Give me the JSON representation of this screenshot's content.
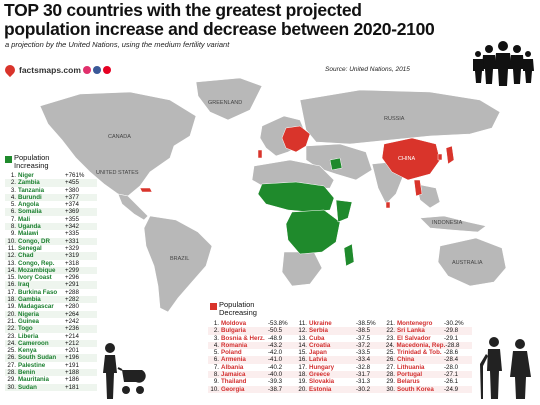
{
  "title": "TOP 30 countries with the greatest projected population increase and decrease between 2020-2100",
  "subtitle": "a projection by the United Nations, using the medium fertility variant",
  "source": "Source: United Nations, 2015",
  "brand": {
    "name": "factsmaps.com"
  },
  "colors": {
    "increase": "#1f8a2c",
    "decrease": "#d9342b",
    "neutral_land": "#b8b8b8",
    "ocean": "#ffffff"
  },
  "map_labels": [
    "GREENLAND",
    "CANADA",
    "UNITED STATES",
    "BRAZIL",
    "RUSSIA",
    "CHINA",
    "AUSTRALIA",
    "INDONESIA"
  ],
  "legend": {
    "increasing": "Population Increasing",
    "decreasing": "Population Decreasing"
  },
  "increasing": [
    {
      "rank": "1.",
      "name": "Niger",
      "value": "+761%"
    },
    {
      "rank": "2.",
      "name": "Zambia",
      "value": "+455"
    },
    {
      "rank": "3.",
      "name": "Tanzania",
      "value": "+380"
    },
    {
      "rank": "4.",
      "name": "Burundi",
      "value": "+377"
    },
    {
      "rank": "5.",
      "name": "Angola",
      "value": "+374"
    },
    {
      "rank": "6.",
      "name": "Somalia",
      "value": "+369"
    },
    {
      "rank": "7.",
      "name": "Mali",
      "value": "+355"
    },
    {
      "rank": "8.",
      "name": "Uganda",
      "value": "+342"
    },
    {
      "rank": "9.",
      "name": "Malawi",
      "value": "+335"
    },
    {
      "rank": "10.",
      "name": "Congo, DR",
      "value": "+331"
    },
    {
      "rank": "11.",
      "name": "Senegal",
      "value": "+329"
    },
    {
      "rank": "12.",
      "name": "Chad",
      "value": "+319"
    },
    {
      "rank": "13.",
      "name": "Congo, Rep.",
      "value": "+318"
    },
    {
      "rank": "14.",
      "name": "Mozambique",
      "value": "+299"
    },
    {
      "rank": "15.",
      "name": "Ivory Coast",
      "value": "+296"
    },
    {
      "rank": "16.",
      "name": "Iraq",
      "value": "+291"
    },
    {
      "rank": "17.",
      "name": "Burkina Faso",
      "value": "+288"
    },
    {
      "rank": "18.",
      "name": "Gambia",
      "value": "+282"
    },
    {
      "rank": "19.",
      "name": "Madagascar",
      "value": "+280"
    },
    {
      "rank": "20.",
      "name": "Nigeria",
      "value": "+264"
    },
    {
      "rank": "21.",
      "name": "Guinea",
      "value": "+242"
    },
    {
      "rank": "22.",
      "name": "Togo",
      "value": "+236"
    },
    {
      "rank": "23.",
      "name": "Liberia",
      "value": "+214"
    },
    {
      "rank": "24.",
      "name": "Cameroon",
      "value": "+212"
    },
    {
      "rank": "25.",
      "name": "Kenya",
      "value": "+201"
    },
    {
      "rank": "26.",
      "name": "South Sudan",
      "value": "+196"
    },
    {
      "rank": "27.",
      "name": "Palestine",
      "value": "+191"
    },
    {
      "rank": "28.",
      "name": "Benin",
      "value": "+188"
    },
    {
      "rank": "29.",
      "name": "Mauritania",
      "value": "+186"
    },
    {
      "rank": "30.",
      "name": "Sudan",
      "value": "+181"
    }
  ],
  "decreasing": [
    {
      "rank": "1.",
      "name": "Moldova",
      "value": "-53.8%"
    },
    {
      "rank": "2.",
      "name": "Bulgaria",
      "value": "-50.5"
    },
    {
      "rank": "3.",
      "name": "Bosnia & Herz.",
      "value": "-48.9"
    },
    {
      "rank": "4.",
      "name": "Romania",
      "value": "-43.2"
    },
    {
      "rank": "5.",
      "name": "Poland",
      "value": "-42.0"
    },
    {
      "rank": "6.",
      "name": "Armenia",
      "value": "-41.0"
    },
    {
      "rank": "7.",
      "name": "Albania",
      "value": "-40.2"
    },
    {
      "rank": "8.",
      "name": "Jamaica",
      "value": "-40.0"
    },
    {
      "rank": "9.",
      "name": "Thailand",
      "value": "-39.3"
    },
    {
      "rank": "10.",
      "name": "Georgia",
      "value": "-38.7"
    },
    {
      "rank": "11.",
      "name": "Ukraine",
      "value": "-38.5%"
    },
    {
      "rank": "12.",
      "name": "Serbia",
      "value": "-38.5"
    },
    {
      "rank": "13.",
      "name": "Cuba",
      "value": "-37.5"
    },
    {
      "rank": "14.",
      "name": "Croatia",
      "value": "-37.2"
    },
    {
      "rank": "15.",
      "name": "Japan",
      "value": "-33.5"
    },
    {
      "rank": "16.",
      "name": "Latvia",
      "value": "-33.4"
    },
    {
      "rank": "17.",
      "name": "Hungary",
      "value": "-32.8"
    },
    {
      "rank": "18.",
      "name": "Greece",
      "value": "-31.7"
    },
    {
      "rank": "19.",
      "name": "Slovakia",
      "value": "-31.3"
    },
    {
      "rank": "20.",
      "name": "Estonia",
      "value": "-30.2"
    },
    {
      "rank": "21.",
      "name": "Montenegro",
      "value": "-30.2%"
    },
    {
      "rank": "22.",
      "name": "Sri Lanka",
      "value": "-29.8"
    },
    {
      "rank": "23.",
      "name": "El Salvador",
      "value": "-29.1"
    },
    {
      "rank": "24.",
      "name": "Macedonia, Rep.",
      "value": "-28.8"
    },
    {
      "rank": "25.",
      "name": "Trinidad & Tob.",
      "value": "-28.6"
    },
    {
      "rank": "26.",
      "name": "China",
      "value": "-28.4"
    },
    {
      "rank": "27.",
      "name": "Lithuania",
      "value": "-28.0"
    },
    {
      "rank": "28.",
      "name": "Portugal",
      "value": "-27.1"
    },
    {
      "rank": "29.",
      "name": "Belarus",
      "value": "-26.1"
    },
    {
      "rank": "30.",
      "name": "South Korea",
      "value": "-24.9"
    }
  ]
}
